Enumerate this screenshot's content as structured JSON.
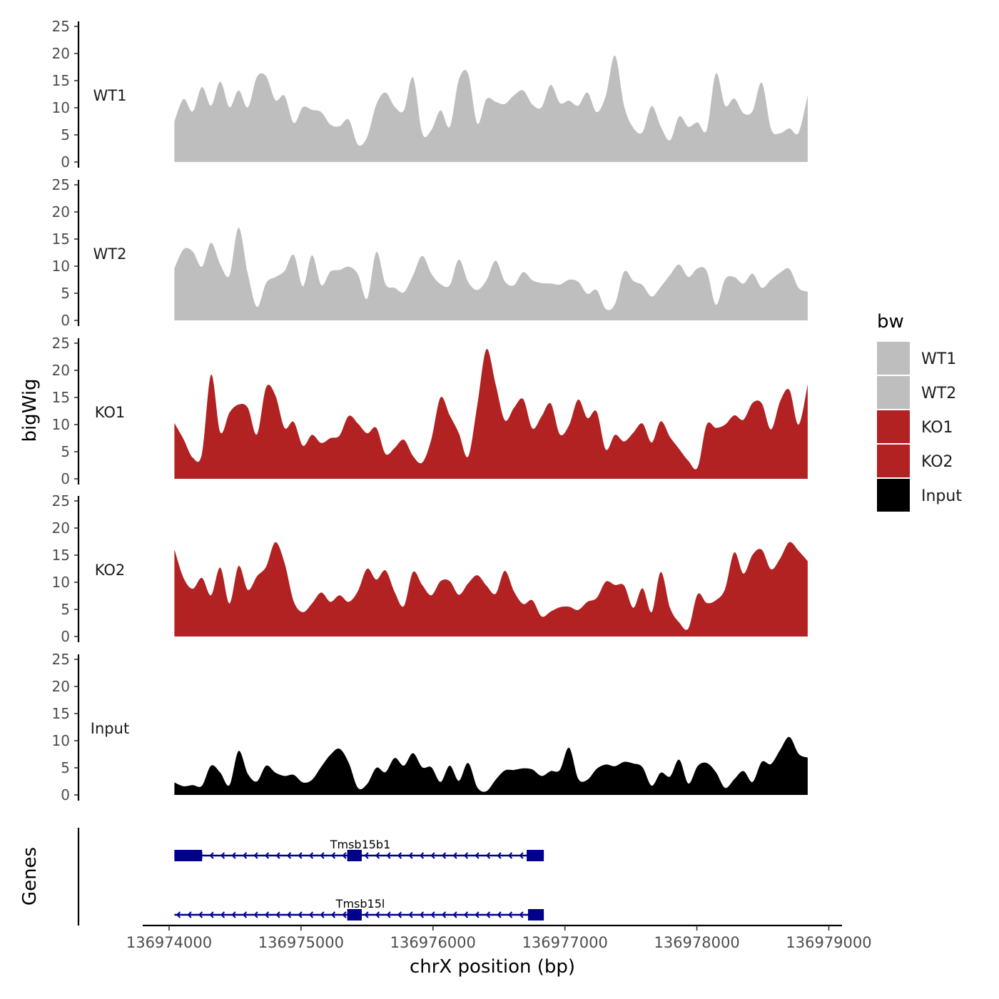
{
  "chart_data": {
    "type": "area",
    "title": "",
    "xlabel": "chrX position (bp)",
    "ylabel": "bigWig",
    "genes_panel_label": "Genes",
    "xlim": [
      136973800,
      136979100
    ],
    "data_x_range": [
      136974040,
      136978840
    ],
    "ylim": [
      0,
      25
    ],
    "yticks": [
      0,
      5,
      10,
      15,
      20,
      25
    ],
    "xticks": [
      136974000,
      136975000,
      136976000,
      136977000,
      136978000,
      136979000
    ],
    "xtick_labels": [
      "136974000",
      "136975000",
      "136976000",
      "136977000",
      "136978000",
      "136979000"
    ],
    "grid": false,
    "legend": {
      "title": "bw",
      "position": "right",
      "entries": [
        {
          "label": "WT1",
          "color": "#BEBEBE"
        },
        {
          "label": "WT2",
          "color": "#BEBEBE"
        },
        {
          "label": "KO1",
          "color": "#B22222"
        },
        {
          "label": "KO2",
          "color": "#B22222"
        },
        {
          "label": "Input",
          "color": "#000000"
        }
      ]
    },
    "series": [
      {
        "name": "WT1",
        "color": "#BEBEBE",
        "values": [
          7.5,
          11.6,
          9.3,
          13.8,
          10.4,
          14.8,
          10.1,
          13.2,
          10.1,
          15.7,
          15.8,
          11.4,
          12.2,
          7.2,
          10.1,
          9.6,
          9.2,
          6.9,
          6.6,
          7.8,
          3.2,
          4.6,
          10.6,
          12.8,
          10.2,
          9.5,
          15.6,
          5.3,
          5.9,
          9.5,
          6.5,
          15.2,
          16.3,
          7.1,
          11.6,
          11.1,
          10.7,
          12.3,
          13.2,
          10.6,
          10.1,
          14.2,
          10.9,
          11.3,
          10.4,
          12.8,
          9.2,
          12.2,
          19.6,
          10.3,
          6.3,
          5.5,
          10.3,
          6.5,
          4.0,
          8.4,
          6.5,
          7.3,
          5.9,
          16.3,
          10.4,
          11.7,
          9.0,
          9.4,
          14.6,
          6.1,
          5.3,
          6.2,
          5.4,
          12.3
        ]
      },
      {
        "name": "WT2",
        "color": "#BEBEBE",
        "values": [
          9.6,
          13.1,
          12.7,
          9.9,
          14.3,
          10.3,
          8.3,
          17.1,
          8.6,
          2.5,
          6.9,
          8.0,
          9.1,
          12.1,
          6.3,
          12.0,
          6.5,
          9.0,
          9.3,
          9.9,
          8.5,
          4.0,
          12.6,
          6.7,
          6.0,
          5.2,
          8.3,
          11.9,
          8.6,
          6.7,
          6.5,
          11.2,
          7.1,
          5.6,
          7.4,
          11.0,
          7.2,
          6.5,
          8.9,
          7.4,
          6.9,
          6.8,
          6.6,
          7.5,
          7.1,
          4.9,
          5.6,
          2.1,
          3.0,
          9.0,
          7.3,
          6.5,
          4.4,
          6.2,
          8.4,
          10.3,
          8.0,
          9.6,
          9.1,
          2.9,
          7.6,
          8.0,
          6.8,
          8.6,
          6.0,
          7.5,
          8.8,
          9.5,
          6.0,
          5.3
        ]
      },
      {
        "name": "KO1",
        "color": "#B22222",
        "values": [
          10.3,
          7.3,
          3.9,
          4.6,
          19.2,
          8.6,
          12.2,
          13.7,
          13.1,
          8.2,
          16.9,
          15.4,
          9.4,
          10.5,
          6.1,
          8.1,
          6.6,
          7.5,
          8.0,
          11.6,
          10.2,
          8.4,
          9.4,
          4.6,
          5.7,
          7.2,
          4.2,
          3.0,
          7.3,
          15.0,
          11.7,
          8.4,
          4.1,
          13.6,
          23.9,
          17.4,
          10.8,
          13.1,
          14.7,
          9.3,
          11.5,
          13.9,
          8.2,
          9.9,
          14.6,
          11.2,
          12.4,
          5.4,
          8.1,
          6.9,
          8.5,
          10.2,
          6.7,
          10.6,
          7.7,
          5.5,
          3.3,
          2.1,
          10.0,
          9.4,
          10.0,
          11.7,
          10.9,
          14.0,
          13.9,
          9.1,
          14.3,
          16.4,
          10.0,
          17.4
        ]
      },
      {
        "name": "KO2",
        "color": "#B22222",
        "values": [
          16.1,
          10.8,
          8.8,
          10.8,
          7.6,
          12.7,
          6.1,
          13.0,
          8.6,
          11.1,
          12.9,
          17.4,
          13.6,
          6.5,
          4.5,
          6.1,
          8.1,
          6.4,
          7.6,
          6.4,
          8.4,
          12.5,
          10.5,
          12.2,
          8.2,
          5.6,
          11.9,
          9.5,
          7.6,
          10.2,
          10.2,
          7.7,
          9.8,
          11.3,
          9.4,
          7.9,
          12.1,
          8.3,
          6.0,
          6.7,
          3.7,
          4.6,
          5.4,
          5.5,
          4.9,
          6.4,
          7.1,
          10.1,
          9.5,
          9.4,
          5.3,
          8.9,
          4.5,
          11.9,
          5.3,
          2.6,
          1.5,
          7.8,
          6.2,
          6.7,
          8.8,
          15.5,
          11.6,
          15.1,
          16.0,
          12.4,
          14.4,
          17.4,
          15.8,
          13.9
        ]
      },
      {
        "name": "Input",
        "color": "#000000",
        "values": [
          2.3,
          1.6,
          1.8,
          1.7,
          5.4,
          4.1,
          1.8,
          8.1,
          3.9,
          2.5,
          5.4,
          4.1,
          3.5,
          3.7,
          2.3,
          2.8,
          5.2,
          7.4,
          8.5,
          5.9,
          1.3,
          2.0,
          5.0,
          4.2,
          6.8,
          5.4,
          7.7,
          5.1,
          5.1,
          2.4,
          5.4,
          2.6,
          5.9,
          1.4,
          0.7,
          2.8,
          4.5,
          4.6,
          4.9,
          4.7,
          3.5,
          4.4,
          4.6,
          8.7,
          3.0,
          2.8,
          4.8,
          5.6,
          5.3,
          6.1,
          5.8,
          5.1,
          1.7,
          4.1,
          3.4,
          6.5,
          2.1,
          5.3,
          5.9,
          4.2,
          1.3,
          2.9,
          4.4,
          2.4,
          6.1,
          5.7,
          8.3,
          10.7,
          7.6,
          6.9
        ]
      }
    ],
    "genes": [
      {
        "name": "Tmsb15b1",
        "start": 136974040,
        "end": 136976840,
        "strand": "-",
        "exons": [
          [
            136974040,
            136974250
          ],
          [
            136975350,
            136975460
          ],
          [
            136976710,
            136976840
          ]
        ]
      },
      {
        "name": "Tmsb15l",
        "start": 136974040,
        "end": 136976840,
        "strand": "-",
        "exons": [
          [
            136975350,
            136975460
          ],
          [
            136976720,
            136976840
          ]
        ]
      }
    ]
  }
}
